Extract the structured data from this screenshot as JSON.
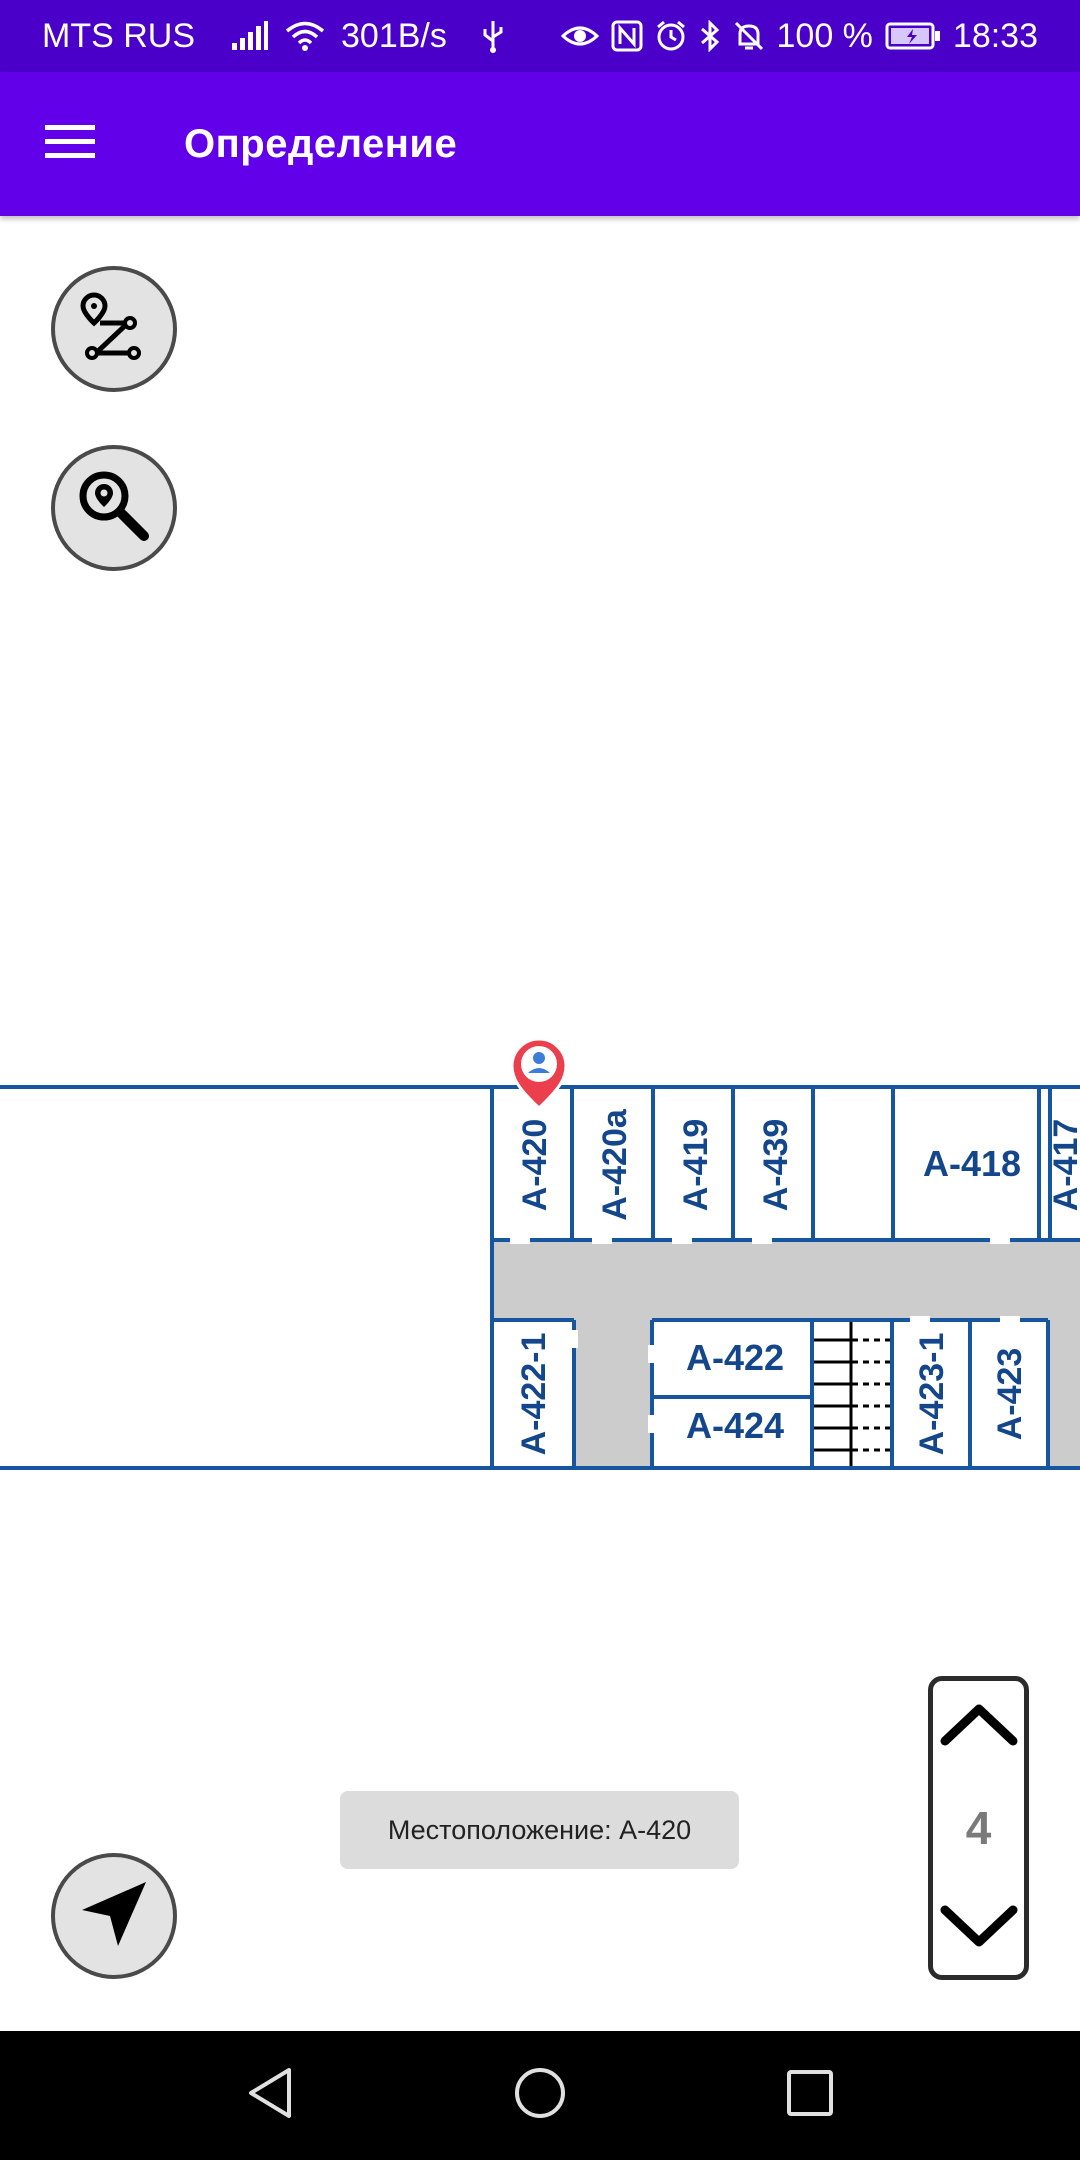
{
  "status_bar": {
    "carrier": "MTS RUS",
    "net_speed": "301B/s",
    "battery": "100 %",
    "time": "18:33",
    "icons": [
      "signal-icon",
      "wifi-icon",
      "usb-icon",
      "eye-icon",
      "nfc-icon",
      "alarm-icon",
      "bluetooth-icon",
      "mute-icon",
      "battery-icon"
    ]
  },
  "app_bar": {
    "title": "Определение",
    "menu_icon": "hamburger-menu-icon"
  },
  "map": {
    "floor": "4",
    "current_room": "А-420",
    "rooms": {
      "a420": "А-420",
      "a420a": "А-420а",
      "a419": "А-419",
      "a439": "А-439",
      "a418": "А-418",
      "a417": "А-417",
      "a422_1": "А-422-1",
      "a422": "А-422",
      "a424": "А-424",
      "a423_1": "А-423-1",
      "a423": "А-423"
    },
    "colors": {
      "wall": "#1656a0",
      "room_text": "#14468c",
      "corridor": "#cccccc",
      "marker": "#ec3f4d"
    }
  },
  "buttons": {
    "route_icon": "route-icon",
    "search_location_icon": "search-location-icon",
    "my_location_icon": "navigation-arrow-icon"
  },
  "toast": {
    "text": "Местоположение: А-420"
  },
  "floor_selector": {
    "current": "4",
    "up_icon": "chevron-up-icon",
    "down_icon": "chevron-down-icon"
  },
  "nav_bar": {
    "icons": [
      "back-icon",
      "home-icon",
      "recents-icon"
    ]
  },
  "theme": {
    "status_bar": "#4a00c8",
    "app_bar": "#6200ea"
  }
}
